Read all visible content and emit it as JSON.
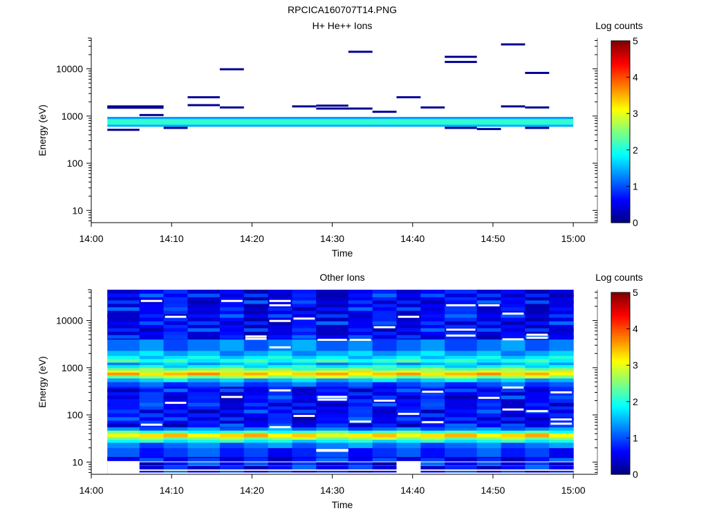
{
  "figure_title": "RPCICA160707T14.PNG",
  "colors": {
    "colormap": "jet",
    "stops": [
      "#00007f",
      "#0000ff",
      "#007fff",
      "#00ffff",
      "#7fff7f",
      "#ffff00",
      "#ff7f00",
      "#ff0000",
      "#7f0000"
    ]
  },
  "chart_data": [
    {
      "type": "heatmap",
      "title": "H+ He++ Ions",
      "xlabel": "Time",
      "ylabel": "Energy (eV)",
      "yscale": "log",
      "xlim": [
        "14:00",
        "15:03"
      ],
      "ylim": [
        5.5,
        45000
      ],
      "x_ticks": [
        "14:00",
        "14:10",
        "14:20",
        "14:30",
        "14:40",
        "14:50",
        "15:00"
      ],
      "y_ticks": [
        "10",
        "100",
        "1000",
        "10000"
      ],
      "colorbar": {
        "label": "Log counts",
        "range": [
          0,
          5
        ],
        "ticks": [
          "0",
          "1",
          "2",
          "3",
          "4",
          "5"
        ]
      },
      "time_bins": [
        "14:02",
        "14:06",
        "14:09",
        "14:12",
        "14:16",
        "14:19",
        "14:22",
        "14:25",
        "14:28",
        "14:32",
        "14:35",
        "14:38",
        "14:41",
        "14:44",
        "14:48",
        "14:51",
        "14:54",
        "14:57",
        "15:00"
      ],
      "bands": [
        {
          "from": "14:02",
          "to": "15:00",
          "emin": 590,
          "emax": 660,
          "log_counts": 1.5
        },
        {
          "from": "14:02",
          "to": "15:00",
          "emin": 660,
          "emax": 860,
          "log_counts": 2.1
        },
        {
          "from": "14:02",
          "to": "15:00",
          "emin": 860,
          "emax": 960,
          "log_counts": 1.4
        }
      ],
      "lines": [
        {
          "from": "14:02",
          "to": "14:09",
          "energy": 1600,
          "log_counts": 0.1
        },
        {
          "from": "14:02",
          "to": "14:09",
          "energy": 1500,
          "log_counts": 0.1
        },
        {
          "from": "14:02",
          "to": "14:06",
          "energy": 510,
          "log_counts": 0.1
        },
        {
          "from": "14:06",
          "to": "14:09",
          "energy": 1050,
          "log_counts": 0.1
        },
        {
          "from": "14:09",
          "to": "14:12",
          "energy": 560,
          "log_counts": 0.1
        },
        {
          "from": "14:12",
          "to": "14:16",
          "energy": 2500,
          "log_counts": 0.1
        },
        {
          "from": "14:12",
          "to": "14:16",
          "energy": 1700,
          "log_counts": 0.1
        },
        {
          "from": "14:16",
          "to": "14:19",
          "energy": 9800,
          "log_counts": 0.1
        },
        {
          "from": "14:16",
          "to": "14:19",
          "energy": 1520,
          "log_counts": 0.1
        },
        {
          "from": "14:25",
          "to": "14:28",
          "energy": 1600,
          "log_counts": 0.1
        },
        {
          "from": "14:28",
          "to": "14:32",
          "energy": 1660,
          "log_counts": 0.1
        },
        {
          "from": "14:28",
          "to": "14:35",
          "energy": 1440,
          "log_counts": 0.1
        },
        {
          "from": "14:32",
          "to": "14:35",
          "energy": 23000,
          "log_counts": 0.1
        },
        {
          "from": "14:35",
          "to": "14:38",
          "energy": 1230,
          "log_counts": 0.1
        },
        {
          "from": "14:38",
          "to": "14:41",
          "energy": 2500,
          "log_counts": 0.1
        },
        {
          "from": "14:41",
          "to": "14:44",
          "energy": 1520,
          "log_counts": 0.1
        },
        {
          "from": "14:44",
          "to": "14:48",
          "energy": 18000,
          "log_counts": 0.1
        },
        {
          "from": "14:44",
          "to": "14:48",
          "energy": 14000,
          "log_counts": 0.1
        },
        {
          "from": "14:44",
          "to": "14:48",
          "energy": 560,
          "log_counts": 0.1
        },
        {
          "from": "14:48",
          "to": "14:51",
          "energy": 530,
          "log_counts": 0.1
        },
        {
          "from": "14:51",
          "to": "14:54",
          "energy": 33000,
          "log_counts": 0.1
        },
        {
          "from": "14:51",
          "to": "14:54",
          "energy": 1600,
          "log_counts": 0.1
        },
        {
          "from": "14:54",
          "to": "14:57",
          "energy": 8200,
          "log_counts": 0.1
        },
        {
          "from": "14:54",
          "to": "14:57",
          "energy": 1520,
          "log_counts": 0.1
        },
        {
          "from": "14:54",
          "to": "14:57",
          "energy": 560,
          "log_counts": 0.1
        }
      ]
    },
    {
      "type": "heatmap",
      "title": "Other Ions",
      "xlabel": "Time",
      "ylabel": "Energy (eV)",
      "yscale": "log",
      "xlim": [
        "14:00",
        "15:03"
      ],
      "ylim": [
        5.5,
        45000
      ],
      "x_ticks": [
        "14:00",
        "14:10",
        "14:20",
        "14:30",
        "14:40",
        "14:50",
        "15:00"
      ],
      "y_ticks": [
        "10",
        "100",
        "1000",
        "10000"
      ],
      "colorbar": {
        "label": "Log counts",
        "range": [
          0,
          5
        ],
        "ticks": [
          "0",
          "1",
          "2",
          "3",
          "4",
          "5"
        ]
      },
      "time_bins": [
        "14:02",
        "14:06",
        "14:09",
        "14:12",
        "14:16",
        "14:19",
        "14:22",
        "14:25",
        "14:28",
        "14:32",
        "14:35",
        "14:38",
        "14:41",
        "14:44",
        "14:48",
        "14:51",
        "14:54",
        "14:57",
        "15:00"
      ],
      "energy_profile": [
        {
          "emin": 11,
          "emax": 13,
          "log_counts": 0.45
        },
        {
          "emin": 13,
          "emax": 20,
          "log_counts": 0.85
        },
        {
          "emin": 20,
          "emax": 26,
          "log_counts": 1.2
        },
        {
          "emin": 26,
          "emax": 30,
          "log_counts": 1.9
        },
        {
          "emin": 30,
          "emax": 34,
          "log_counts": 2.6
        },
        {
          "emin": 34,
          "emax": 41,
          "log_counts": 3.25
        },
        {
          "emin": 41,
          "emax": 47,
          "log_counts": 2.2
        },
        {
          "emin": 47,
          "emax": 55,
          "log_counts": 1.2
        },
        {
          "emin": 55,
          "emax": 400,
          "log_counts": 0.65
        },
        {
          "emin": 400,
          "emax": 500,
          "log_counts": 1.0
        },
        {
          "emin": 500,
          "emax": 600,
          "log_counts": 1.6
        },
        {
          "emin": 600,
          "emax": 700,
          "log_counts": 2.7
        },
        {
          "emin": 700,
          "emax": 800,
          "log_counts": 3.4
        },
        {
          "emin": 800,
          "emax": 880,
          "log_counts": 3.0
        },
        {
          "emin": 880,
          "emax": 1000,
          "log_counts": 2.4
        },
        {
          "emin": 1000,
          "emax": 1150,
          "log_counts": 1.9
        },
        {
          "emin": 1150,
          "emax": 1300,
          "log_counts": 1.5
        },
        {
          "emin": 1300,
          "emax": 1550,
          "log_counts": 2.05
        },
        {
          "emin": 1550,
          "emax": 1800,
          "log_counts": 1.75
        },
        {
          "emin": 1800,
          "emax": 2300,
          "log_counts": 1.5
        },
        {
          "emin": 2300,
          "emax": 4000,
          "log_counts": 1.2
        },
        {
          "emin": 4000,
          "emax": 45000,
          "log_counts": 0.55
        }
      ],
      "gaps": [
        {
          "from": "14:02",
          "to": "14:06",
          "emin": 5.5,
          "emax": 10.5
        },
        {
          "from": "14:06",
          "to": "15:00",
          "emin": 5.5,
          "emax": 6.0
        },
        {
          "from": "14:28",
          "to": "14:32",
          "emin": 16.5,
          "emax": 19
        },
        {
          "from": "14:38",
          "to": "14:41",
          "emin": 5.5,
          "emax": 10.5
        }
      ],
      "empty_bins": [
        {
          "time": "14:06",
          "energy": 26000
        },
        {
          "time": "14:06",
          "energy": 62
        },
        {
          "time": "14:09",
          "energy": 12000
        },
        {
          "time": "14:09",
          "energy": 180
        },
        {
          "time": "14:16",
          "energy": 26000
        },
        {
          "time": "14:16",
          "energy": 240
        },
        {
          "time": "14:19",
          "energy": 4600
        },
        {
          "time": "14:19",
          "energy": 4100
        },
        {
          "time": "14:22",
          "energy": 26000
        },
        {
          "time": "14:22",
          "energy": 21000
        },
        {
          "time": "14:22",
          "energy": 9800
        },
        {
          "time": "14:22",
          "energy": 2700
        },
        {
          "time": "14:22",
          "energy": 330
        },
        {
          "time": "14:22",
          "energy": 55
        },
        {
          "time": "14:25",
          "energy": 11000
        },
        {
          "time": "14:25",
          "energy": 95
        },
        {
          "time": "14:28",
          "energy": 3900
        },
        {
          "time": "14:28",
          "energy": 240
        },
        {
          "time": "14:28",
          "energy": 210
        },
        {
          "time": "14:32",
          "energy": 3900
        },
        {
          "time": "14:32",
          "energy": 72
        },
        {
          "time": "14:35",
          "energy": 7200
        },
        {
          "time": "14:35",
          "energy": 200
        },
        {
          "time": "14:38",
          "energy": 12000
        },
        {
          "time": "14:38",
          "energy": 105
        },
        {
          "time": "14:41",
          "energy": 310
        },
        {
          "time": "14:41",
          "energy": 70
        },
        {
          "time": "14:44",
          "energy": 21000
        },
        {
          "time": "14:44",
          "energy": 6400
        },
        {
          "time": "14:44",
          "energy": 4800
        },
        {
          "time": "14:48",
          "energy": 21000
        },
        {
          "time": "14:48",
          "energy": 230
        },
        {
          "time": "14:51",
          "energy": 14000
        },
        {
          "time": "14:51",
          "energy": 4000
        },
        {
          "time": "14:51",
          "energy": 380
        },
        {
          "time": "14:51",
          "energy": 130
        },
        {
          "time": "14:54",
          "energy": 5000
        },
        {
          "time": "14:54",
          "energy": 4300
        },
        {
          "time": "14:54",
          "energy": 120
        },
        {
          "time": "14:57",
          "energy": 300
        },
        {
          "time": "14:57",
          "energy": 80
        },
        {
          "time": "14:57",
          "energy": 65
        }
      ]
    }
  ]
}
